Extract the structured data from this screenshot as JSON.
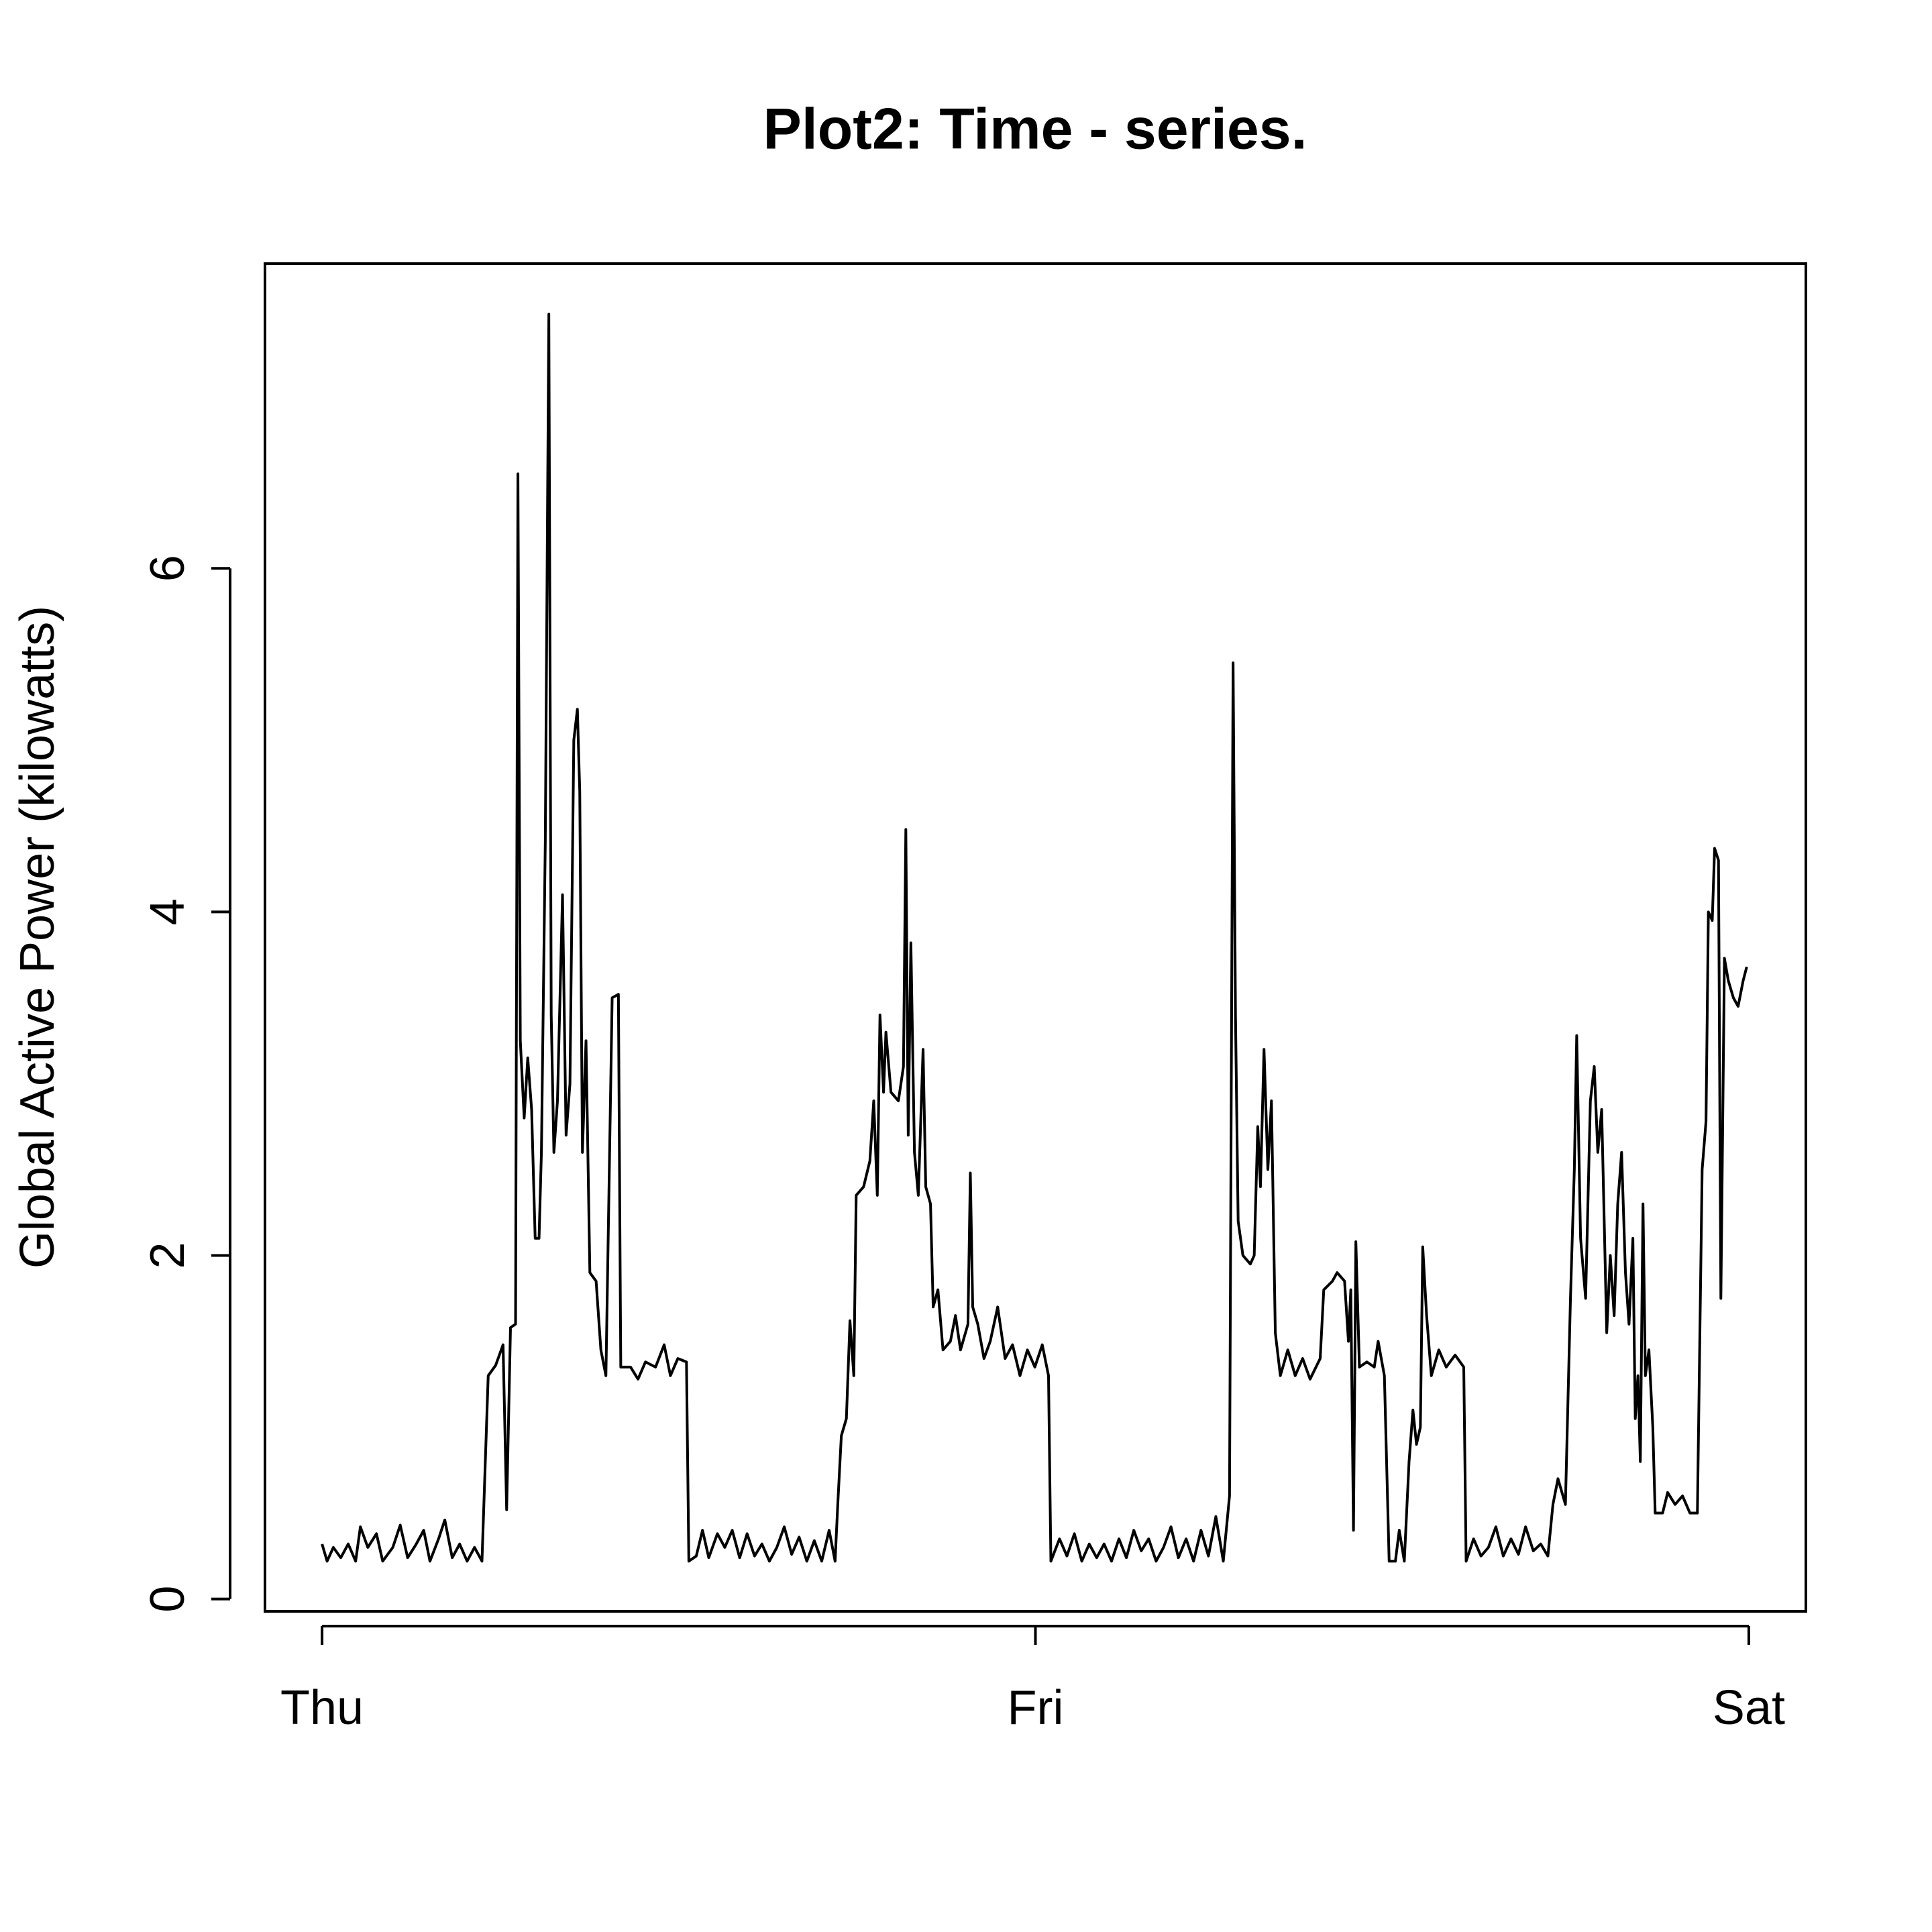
{
  "chart_data": {
    "type": "line",
    "title": "Plot2: Time - series.",
    "y_label": "Global Active Power (kilowatts)",
    "color": "#000000",
    "x": [
      0,
      0.17,
      0.38,
      0.63,
      0.88,
      1.13,
      1.29,
      1.54,
      1.83,
      2.04,
      2.38,
      2.63,
      2.88,
      3.17,
      3.42,
      3.63,
      3.92,
      4.13,
      4.38,
      4.63,
      4.88,
      5.13,
      5.38,
      5.59,
      5.84,
      6.09,
      6.21,
      6.34,
      6.51,
      6.59,
      6.67,
      6.8,
      6.92,
      7.05,
      7.17,
      7.3,
      7.38,
      7.51,
      7.63,
      7.71,
      7.8,
      7.92,
      8.09,
      8.21,
      8.34,
      8.47,
      8.59,
      8.67,
      8.76,
      8.88,
      9.01,
      9.22,
      9.38,
      9.55,
      9.76,
      9.97,
      10.05,
      10.38,
      10.63,
      10.88,
      11.22,
      11.51,
      11.72,
      11.97,
      12.26,
      12.34,
      12.59,
      12.8,
      13.01,
      13.3,
      13.55,
      13.8,
      14.05,
      14.3,
      14.55,
      14.8,
      15.05,
      15.3,
      15.55,
      15.8,
      16.05,
      16.31,
      16.56,
      16.81,
      17.06,
      17.26,
      17.35,
      17.47,
      17.64,
      17.76,
      17.89,
      17.97,
      18.22,
      18.43,
      18.56,
      18.68,
      18.77,
      18.89,
      18.97,
      19.14,
      19.39,
      19.56,
      19.64,
      19.72,
      19.81,
      19.93,
      20.06,
      20.22,
      20.31,
      20.47,
      20.56,
      20.72,
      20.89,
      21.14,
      21.31,
      21.48,
      21.73,
      21.81,
      21.89,
      22.06,
      22.27,
      22.48,
      22.73,
      22.98,
      23.23,
      23.48,
      23.73,
      23.98,
      24.23,
      24.44,
      24.52,
      24.81,
      25.06,
      25.31,
      25.56,
      25.81,
      26.06,
      26.31,
      26.56,
      26.81,
      27.06,
      27.31,
      27.56,
      27.81,
      28.06,
      28.31,
      28.56,
      28.81,
      29.07,
      29.32,
      29.57,
      29.82,
      30.07,
      30.32,
      30.53,
      30.65,
      30.73,
      30.82,
      30.98,
      31.23,
      31.36,
      31.48,
      31.57,
      31.69,
      31.82,
      31.94,
      32.07,
      32.24,
      32.49,
      32.74,
      32.99,
      33.24,
      33.58,
      33.7,
      33.99,
      34.15,
      34.4,
      34.53,
      34.61,
      34.7,
      34.78,
      34.9,
      35.15,
      35.4,
      35.53,
      35.74,
      35.9,
      36.11,
      36.24,
      36.41,
      36.57,
      36.7,
      36.82,
      36.95,
      37.03,
      37.16,
      37.32,
      37.57,
      37.82,
      38.12,
      38.41,
      38.49,
      38.74,
      38.99,
      39.24,
      39.49,
      39.74,
      40.0,
      40.25,
      40.49,
      40.75,
      41.0,
      41.24,
      41.41,
      41.58,
      41.83,
      42.0,
      42.13,
      42.21,
      42.34,
      42.51,
      42.67,
      42.8,
      42.92,
      43.05,
      43.22,
      43.34,
      43.47,
      43.59,
      43.72,
      43.85,
      43.97,
      44.1,
      44.18,
      44.27,
      44.35,
      44.44,
      44.52,
      44.64,
      44.77,
      44.85,
      45.1,
      45.27,
      45.52,
      45.77,
      46.02,
      46.27,
      46.43,
      46.56,
      46.64,
      46.77,
      46.85,
      46.98,
      47.06,
      47.18,
      47.31,
      47.48,
      47.64,
      47.81,
      47.93
    ],
    "values": [
      0.32,
      0.22,
      0.3,
      0.24,
      0.32,
      0.22,
      0.42,
      0.3,
      0.38,
      0.22,
      0.3,
      0.43,
      0.24,
      0.32,
      0.4,
      0.22,
      0.35,
      0.46,
      0.24,
      0.32,
      0.22,
      0.3,
      0.22,
      1.3,
      1.36,
      1.48,
      0.52,
      1.58,
      1.6,
      6.55,
      3.25,
      2.8,
      3.15,
      2.85,
      2.1,
      2.1,
      2.6,
      4.4,
      7.48,
      3.4,
      2.6,
      2.9,
      4.1,
      2.7,
      3.0,
      5.0,
      5.18,
      4.7,
      2.6,
      3.25,
      1.9,
      1.85,
      1.45,
      1.3,
      3.5,
      3.52,
      1.35,
      1.35,
      1.28,
      1.38,
      1.35,
      1.48,
      1.3,
      1.4,
      1.38,
      0.22,
      0.25,
      0.4,
      0.24,
      0.38,
      0.3,
      0.4,
      0.24,
      0.38,
      0.25,
      0.32,
      0.22,
      0.3,
      0.42,
      0.26,
      0.36,
      0.22,
      0.34,
      0.22,
      0.4,
      0.22,
      0.55,
      0.95,
      1.05,
      1.62,
      1.3,
      2.35,
      2.4,
      2.55,
      2.9,
      2.35,
      3.4,
      2.95,
      3.3,
      2.95,
      2.9,
      3.1,
      4.48,
      2.7,
      3.82,
      2.6,
      2.35,
      3.2,
      2.4,
      2.3,
      1.7,
      1.8,
      1.45,
      1.5,
      1.65,
      1.45,
      1.6,
      2.48,
      1.7,
      1.6,
      1.4,
      1.5,
      1.7,
      1.4,
      1.48,
      1.3,
      1.45,
      1.35,
      1.48,
      1.3,
      0.22,
      0.35,
      0.25,
      0.38,
      0.22,
      0.32,
      0.24,
      0.32,
      0.22,
      0.35,
      0.24,
      0.4,
      0.28,
      0.35,
      0.22,
      0.3,
      0.42,
      0.24,
      0.35,
      0.22,
      0.4,
      0.25,
      0.48,
      0.22,
      0.6,
      5.45,
      3.4,
      2.2,
      2.0,
      1.95,
      2.0,
      2.75,
      2.4,
      3.2,
      2.5,
      2.9,
      1.55,
      1.3,
      1.45,
      1.3,
      1.4,
      1.28,
      1.4,
      1.8,
      1.85,
      1.9,
      1.85,
      1.5,
      1.8,
      0.4,
      2.08,
      1.35,
      1.38,
      1.35,
      1.5,
      1.3,
      0.22,
      0.22,
      0.4,
      0.22,
      0.8,
      1.1,
      0.9,
      1.0,
      2.05,
      1.65,
      1.3,
      1.45,
      1.35,
      1.42,
      1.35,
      0.22,
      0.35,
      0.25,
      0.3,
      0.42,
      0.25,
      0.35,
      0.26,
      0.42,
      0.28,
      0.32,
      0.25,
      0.55,
      0.7,
      0.55,
      1.75,
      2.5,
      3.28,
      2.1,
      1.75,
      2.9,
      3.1,
      2.6,
      2.85,
      1.55,
      2.0,
      1.65,
      2.3,
      2.6,
      1.9,
      1.6,
      2.1,
      1.05,
      1.3,
      0.8,
      2.3,
      1.3,
      1.45,
      1.0,
      0.5,
      0.5,
      0.62,
      0.55,
      0.6,
      0.5,
      0.5,
      2.5,
      2.78,
      4.0,
      3.95,
      4.37,
      4.3,
      1.75,
      3.73,
      3.6,
      3.5,
      3.45,
      3.6,
      3.68
    ],
    "xlim": [
      -1.92,
      49.92
    ],
    "xticks": [
      {
        "value": 0,
        "label": "Thu"
      },
      {
        "value": 24,
        "label": "Fri"
      },
      {
        "value": 48,
        "label": "Sat"
      }
    ],
    "ylim": [
      -0.072,
      7.774
    ],
    "yticks": [
      0,
      2,
      4,
      6
    ]
  }
}
